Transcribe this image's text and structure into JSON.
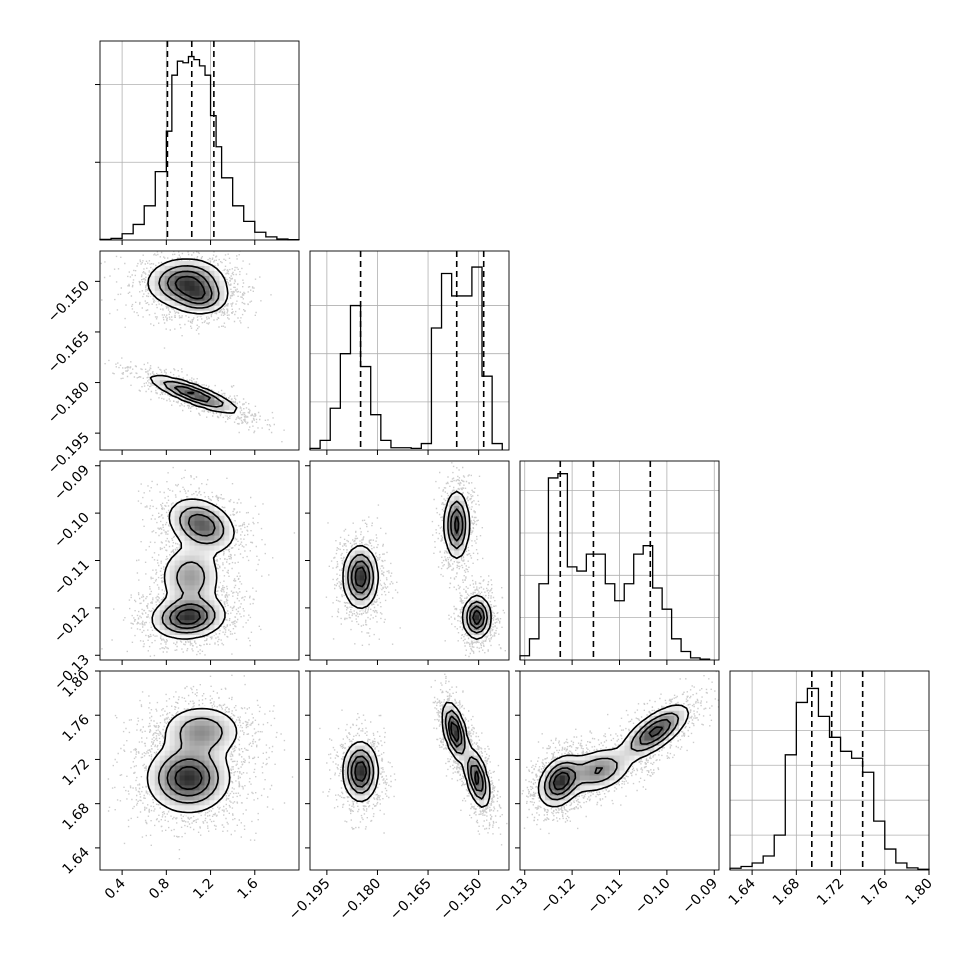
{
  "chart_data": {
    "type": "corner",
    "parameters": 4,
    "background_color": "#ffffff",
    "line_color": "#000000",
    "grid": true,
    "axes": [
      {
        "range": [
          0.2,
          2.0
        ],
        "ticks": [
          0.4,
          0.8,
          1.2,
          1.6
        ],
        "tick_labels": [
          "0.4",
          "0.8",
          "1.2",
          "1.6"
        ]
      },
      {
        "range": [
          -0.2,
          -0.141
        ],
        "ticks": [
          -0.195,
          -0.18,
          -0.165,
          -0.15
        ],
        "tick_labels": [
          "−0.195",
          "−0.180",
          "−0.165",
          "−0.150"
        ]
      },
      {
        "range": [
          -0.131,
          -0.089
        ],
        "ticks": [
          -0.13,
          -0.12,
          -0.11,
          -0.1,
          -0.09
        ],
        "tick_labels": [
          "−0.13",
          "−0.12",
          "−0.11",
          "−0.10",
          "−0.09"
        ]
      },
      {
        "range": [
          1.62,
          1.8
        ],
        "ticks": [
          1.64,
          1.68,
          1.72,
          1.76,
          1.8
        ],
        "tick_labels": [
          "1.64",
          "1.68",
          "1.72",
          "1.76",
          "1.80"
        ]
      }
    ],
    "marginals": [
      {
        "param": 0,
        "bin_edges": [
          0.2,
          0.3,
          0.4,
          0.5,
          0.6,
          0.7,
          0.8,
          0.85,
          0.9,
          0.95,
          1.0,
          1.05,
          1.1,
          1.15,
          1.2,
          1.25,
          1.3,
          1.4,
          1.5,
          1.6,
          1.7,
          1.8,
          1.9,
          2.0
        ],
        "counts": [
          0.2,
          0.5,
          2.0,
          5.0,
          11.0,
          22.0,
          35.0,
          53.0,
          57.5,
          57.0,
          59.0,
          58.0,
          56.0,
          53.0,
          40.0,
          30.0,
          20.0,
          11.0,
          6.0,
          2.5,
          1.0,
          0.3,
          0.1
        ],
        "quantiles": [
          0.81,
          1.03,
          1.23
        ],
        "ylim": [
          0,
          64
        ],
        "ytick_values": [
          25,
          50
        ]
      },
      {
        "param": 1,
        "bin_edges": [
          -0.2,
          -0.197,
          -0.194,
          -0.191,
          -0.188,
          -0.185,
          -0.182,
          -0.179,
          -0.176,
          -0.173,
          -0.17,
          -0.167,
          -0.164,
          -0.161,
          -0.158,
          -0.155,
          -0.152,
          -0.149,
          -0.146,
          -0.143
        ],
        "counts": [
          0.5,
          3,
          13,
          30,
          45,
          26,
          11,
          3,
          0.7,
          0.7,
          0.5,
          2,
          38,
          55,
          48,
          48,
          57,
          23,
          2
        ],
        "quantiles": [
          -0.185,
          -0.1565,
          -0.1485
        ],
        "ylim": [
          0,
          62
        ],
        "ytick_values": [
          15,
          30,
          45
        ]
      },
      {
        "param": 2,
        "bin_edges": [
          -0.131,
          -0.129,
          -0.127,
          -0.125,
          -0.123,
          -0.121,
          -0.119,
          -0.117,
          -0.115,
          -0.113,
          -0.111,
          -0.109,
          -0.107,
          -0.105,
          -0.103,
          -0.101,
          -0.099,
          -0.097,
          -0.095,
          -0.093,
          -0.091
        ],
        "counts": [
          1,
          5,
          18,
          43,
          44,
          22,
          21,
          25,
          25,
          18,
          14,
          18,
          25,
          27,
          17,
          12,
          5,
          2,
          0.5,
          0.2
        ],
        "quantiles": [
          -0.1225,
          -0.1155,
          -0.1035
        ],
        "ylim": [
          0,
          47
        ],
        "ytick_values": [
          10,
          20,
          30,
          40
        ]
      },
      {
        "param": 3,
        "bin_edges": [
          1.62,
          1.63,
          1.64,
          1.65,
          1.66,
          1.67,
          1.68,
          1.69,
          1.7,
          1.71,
          1.72,
          1.73,
          1.74,
          1.75,
          1.76,
          1.77,
          1.78,
          1.79,
          1.8
        ],
        "counts": [
          0.5,
          1,
          2,
          4,
          10,
          33,
          48,
          52,
          44,
          38,
          34,
          32,
          28,
          14,
          6,
          2,
          0.6,
          0.2
        ],
        "quantiles": [
          1.694,
          1.712,
          1.74
        ],
        "ylim": [
          0,
          57
        ],
        "ytick_values": [
          10,
          20,
          30,
          40
        ]
      }
    ],
    "joint_modes": [
      {
        "x": 0,
        "y": 1,
        "modes": [
          {
            "mx": 0.98,
            "my": -0.1505,
            "sx": 0.17,
            "sy": 0.0035,
            "rho": 0,
            "w": 1.1
          },
          {
            "mx": 1.12,
            "my": -0.155,
            "sx": 0.12,
            "sy": 0.0025,
            "rho": 0,
            "w": 0.6
          },
          {
            "mx": 1.05,
            "my": -0.1835,
            "sx": 0.2,
            "sy": 0.0028,
            "rho": -0.85,
            "w": 1.0
          }
        ]
      },
      {
        "x": 0,
        "y": 2,
        "modes": [
          {
            "mx": 1.0,
            "my": -0.122,
            "sx": 0.16,
            "sy": 0.0022,
            "rho": 0.1,
            "w": 1.0
          },
          {
            "mx": 1.02,
            "my": -0.1135,
            "sx": 0.14,
            "sy": 0.0035,
            "rho": 0,
            "w": 0.5
          },
          {
            "mx": 1.12,
            "my": -0.1025,
            "sx": 0.15,
            "sy": 0.0028,
            "rho": -0.3,
            "w": 0.8
          }
        ]
      },
      {
        "x": 1,
        "y": 2,
        "modes": [
          {
            "mx": -0.185,
            "my": -0.1135,
            "sx": 0.0025,
            "sy": 0.0032,
            "rho": 0,
            "w": 1.0
          },
          {
            "mx": -0.1565,
            "my": -0.1025,
            "sx": 0.0018,
            "sy": 0.0035,
            "rho": 0,
            "w": 0.9
          },
          {
            "mx": -0.1505,
            "my": -0.122,
            "sx": 0.002,
            "sy": 0.0022,
            "rho": 0,
            "w": 1.0
          }
        ]
      },
      {
        "x": 0,
        "y": 3,
        "modes": [
          {
            "mx": 1.0,
            "my": 1.703,
            "sx": 0.18,
            "sy": 0.015,
            "rho": 0,
            "w": 1.0
          },
          {
            "mx": 1.12,
            "my": 1.745,
            "sx": 0.18,
            "sy": 0.012,
            "rho": 0,
            "w": 0.55
          }
        ]
      },
      {
        "x": 1,
        "y": 3,
        "modes": [
          {
            "mx": -0.185,
            "my": 1.709,
            "sx": 0.0025,
            "sy": 0.013,
            "rho": 0,
            "w": 1.0
          },
          {
            "mx": -0.157,
            "my": 1.745,
            "sx": 0.0018,
            "sy": 0.013,
            "rho": -0.5,
            "w": 1.0
          },
          {
            "mx": -0.1505,
            "my": 1.703,
            "sx": 0.0018,
            "sy": 0.013,
            "rho": -0.5,
            "w": 0.9
          }
        ]
      },
      {
        "x": 2,
        "y": 3,
        "modes": [
          {
            "mx": -0.1225,
            "my": 1.7,
            "sx": 0.0022,
            "sy": 0.011,
            "rho": 0.3,
            "w": 1.0
          },
          {
            "mx": -0.1145,
            "my": 1.71,
            "sx": 0.0035,
            "sy": 0.01,
            "rho": 0.3,
            "w": 0.6
          },
          {
            "mx": -0.1025,
            "my": 1.745,
            "sx": 0.0035,
            "sy": 0.012,
            "rho": 0.7,
            "w": 0.9
          }
        ]
      }
    ]
  }
}
